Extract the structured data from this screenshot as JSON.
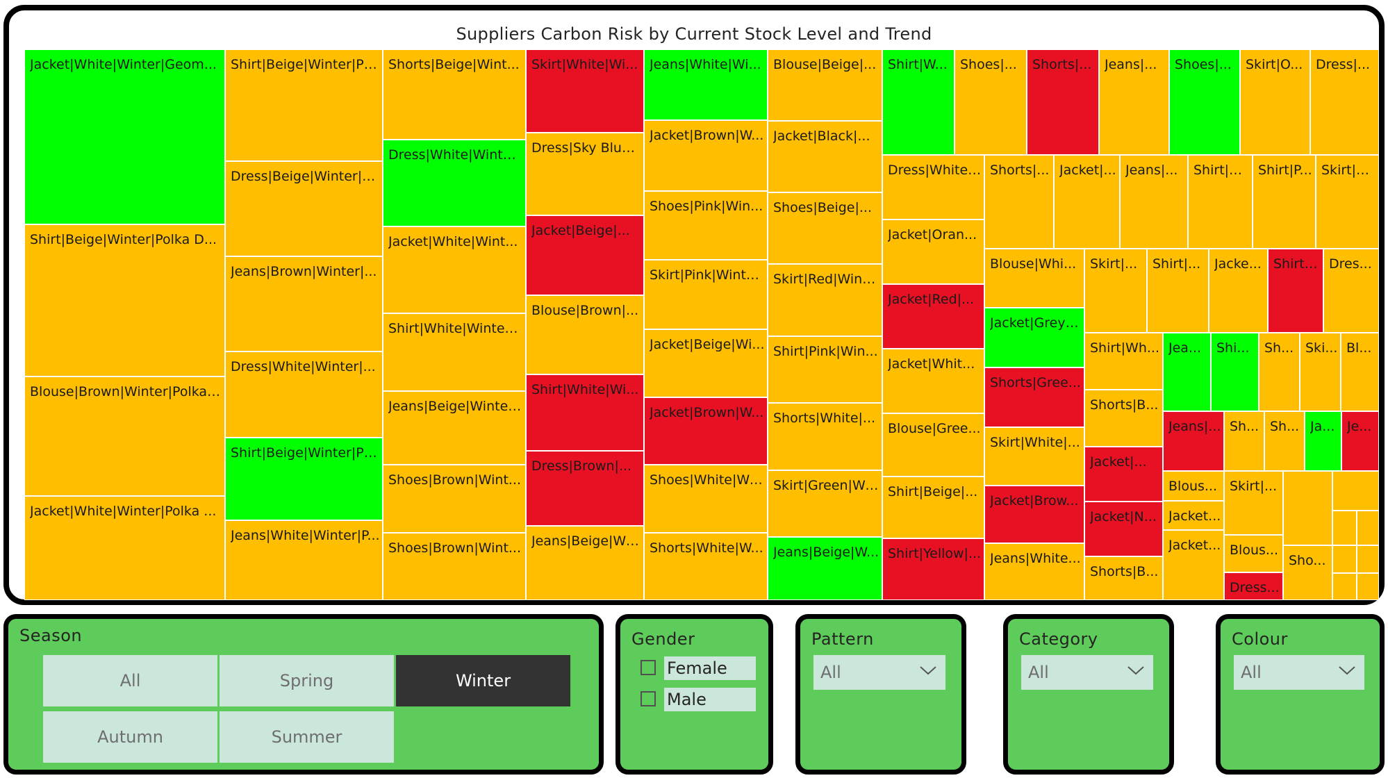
{
  "chart_data": {
    "type": "treemap",
    "title": "Suppliers Carbon Risk by Current Stock Level and Trend",
    "legend": "none",
    "colors": {
      "red": "#e81123",
      "amber": "#ffbe00",
      "green": "#00ff00"
    },
    "tiles": [
      {
        "label": "Jacket|White|Winter|Geom...",
        "risk": "green",
        "col": 0,
        "row": 0,
        "w": 1.0,
        "h": 0.316
      },
      {
        "label": "Shirt|Beige|Winter|Polka D...",
        "risk": "amber",
        "col": 0,
        "row": 1,
        "w": 1.0,
        "h": 0.277
      },
      {
        "label": "Blouse|Brown|Winter|Polka ...",
        "risk": "amber",
        "col": 0,
        "row": 2,
        "w": 1.0,
        "h": 0.218
      },
      {
        "label": "Jacket|White|Winter|Polka ...",
        "risk": "amber",
        "col": 0,
        "row": 3,
        "w": 1.0,
        "h": 0.189
      },
      {
        "label": "Shirt|Beige|Winter|Pl...",
        "risk": "amber",
        "col": 1,
        "row": 0,
        "h": 0.203
      },
      {
        "label": "Dress|Beige|Winter|P...",
        "risk": "amber",
        "col": 1,
        "row": 1,
        "h": 0.173
      },
      {
        "label": "Jeans|Brown|Winter|...",
        "risk": "amber",
        "col": 1,
        "row": 2,
        "h": 0.172
      },
      {
        "label": "Dress|White|Winter|...",
        "risk": "amber",
        "col": 1,
        "row": 3,
        "h": 0.156
      },
      {
        "label": "Shirt|Beige|Winter|Pl...",
        "risk": "green",
        "col": 1,
        "row": 4,
        "h": 0.15
      },
      {
        "label": "Jeans|White|Winter|P...",
        "risk": "amber",
        "col": 1,
        "row": 5,
        "h": 0.146
      },
      {
        "label": "Shorts|Beige|Wint...",
        "risk": "amber",
        "col": 2,
        "row": 0,
        "h": 0.164
      },
      {
        "label": "Dress|White|Winte...",
        "risk": "green",
        "col": 2,
        "row": 1,
        "h": 0.157
      },
      {
        "label": "Jacket|White|Wint...",
        "risk": "amber",
        "col": 2,
        "row": 2,
        "h": 0.157
      },
      {
        "label": "Shirt|White|Winter|...",
        "risk": "amber",
        "col": 2,
        "row": 3,
        "h": 0.141
      },
      {
        "label": "Jeans|Beige|Winter...",
        "risk": "amber",
        "col": 2,
        "row": 4,
        "h": 0.134
      },
      {
        "label": "Shoes|Brown|Wint...",
        "risk": "amber",
        "col": 2,
        "row": 5,
        "h": 0.124
      },
      {
        "label": "Shoes|Brown|Wint...",
        "risk": "amber",
        "col": 2,
        "row": 6,
        "h": 0.123
      },
      {
        "label": "Skirt|White|Wi...",
        "risk": "red",
        "col": 3,
        "row": 0,
        "h": 0.151
      },
      {
        "label": "Dress|Sky Blue...",
        "risk": "amber",
        "col": 3,
        "row": 1,
        "h": 0.15
      },
      {
        "label": "Jacket|Beige|...",
        "risk": "red",
        "col": 3,
        "row": 2,
        "h": 0.145
      },
      {
        "label": "Blouse|Brown|...",
        "risk": "amber",
        "col": 3,
        "row": 3,
        "h": 0.143
      },
      {
        "label": "Shirt|White|Wi...",
        "risk": "red",
        "col": 3,
        "row": 4,
        "h": 0.139
      },
      {
        "label": "Dress|Brown|...",
        "risk": "red",
        "col": 3,
        "row": 5,
        "h": 0.136
      },
      {
        "label": "Jeans|Beige|Wi...",
        "risk": "amber",
        "col": 3,
        "row": 6,
        "h": 0.136
      },
      {
        "label": "Jeans|White|Wi...",
        "risk": "green",
        "col": 4,
        "row": 0,
        "h": 0.129
      },
      {
        "label": "Jacket|Brown|W...",
        "risk": "amber",
        "col": 4,
        "row": 1,
        "h": 0.128
      },
      {
        "label": "Shoes|Pink|Win...",
        "risk": "amber",
        "col": 4,
        "row": 2,
        "h": 0.125
      },
      {
        "label": "Skirt|Pink|Winte...",
        "risk": "amber",
        "col": 4,
        "row": 3,
        "h": 0.126
      },
      {
        "label": "Jacket|Beige|Wi...",
        "risk": "amber",
        "col": 4,
        "row": 4,
        "h": 0.124
      },
      {
        "label": "Jacket|Brown|W...",
        "risk": "red",
        "col": 4,
        "row": 5,
        "h": 0.123
      },
      {
        "label": "Shoes|White|Wi...",
        "risk": "amber",
        "col": 4,
        "row": 6,
        "h": 0.124
      },
      {
        "label": "Shorts|White|W...",
        "risk": "amber",
        "col": 4,
        "row": 7,
        "h": 0.121
      },
      {
        "label": "Blouse|Beige|...",
        "risk": "amber",
        "col": 5,
        "row": 0,
        "h": 0.13
      },
      {
        "label": "Jacket|Black|...",
        "risk": "amber",
        "col": 5,
        "row": 1,
        "h": 0.13
      },
      {
        "label": "Shoes|Beige|...",
        "risk": "amber",
        "col": 5,
        "row": 2,
        "h": 0.13
      },
      {
        "label": "Skirt|Red|Wint...",
        "risk": "amber",
        "col": 5,
        "row": 3,
        "h": 0.131
      },
      {
        "label": "Shirt|Pink|Win...",
        "risk": "amber",
        "col": 5,
        "row": 4,
        "h": 0.121
      },
      {
        "label": "Shorts|White|...",
        "risk": "amber",
        "col": 5,
        "row": 5,
        "h": 0.122
      },
      {
        "label": "Skirt|Green|Wi...",
        "risk": "amber",
        "col": 5,
        "row": 6,
        "h": 0.121
      },
      {
        "label": "Jeans|Beige|W...",
        "risk": "green",
        "col": 5,
        "row": 7,
        "h": 0.115
      },
      {
        "label": "Shirt|W...",
        "risk": "green",
        "section": "top"
      },
      {
        "label": "Shoes|...",
        "risk": "amber",
        "section": "top"
      },
      {
        "label": "Shorts|...",
        "risk": "red",
        "section": "top"
      },
      {
        "label": "Jeans|...",
        "risk": "amber",
        "section": "top"
      },
      {
        "label": "Shoes|...",
        "risk": "green",
        "section": "top"
      },
      {
        "label": "Skirt|O...",
        "risk": "amber",
        "section": "top"
      },
      {
        "label": "Dress|...",
        "risk": "amber",
        "section": "top"
      },
      {
        "label": "Dress|White|...",
        "risk": "amber",
        "section": "left"
      },
      {
        "label": "Jacket|Oran...",
        "risk": "amber",
        "section": "left"
      },
      {
        "label": "Jacket|Red|...",
        "risk": "red",
        "section": "left"
      },
      {
        "label": "Jacket|Whit...",
        "risk": "amber",
        "section": "left"
      },
      {
        "label": "Blouse|Gree...",
        "risk": "amber",
        "section": "left"
      },
      {
        "label": "Shirt|Beige|...",
        "risk": "amber",
        "section": "left"
      },
      {
        "label": "Shirt|Yellow|...",
        "risk": "red",
        "section": "left"
      },
      {
        "label": "Shorts|...",
        "risk": "amber",
        "section": "row2"
      },
      {
        "label": "Jacket|...",
        "risk": "amber",
        "section": "row2"
      },
      {
        "label": "Jeans|...",
        "risk": "amber",
        "section": "row2"
      },
      {
        "label": "Shirt|B...",
        "risk": "amber",
        "section": "row2"
      },
      {
        "label": "Shirt|P...",
        "risk": "amber",
        "section": "row2"
      },
      {
        "label": "Skirt|B...",
        "risk": "amber",
        "section": "row2"
      },
      {
        "label": "Blouse|Whi...",
        "risk": "amber",
        "section": "mid"
      },
      {
        "label": "Jacket|Grey|...",
        "risk": "green",
        "section": "mid"
      },
      {
        "label": "Shorts|Gree...",
        "risk": "red",
        "section": "mid"
      },
      {
        "label": "Skirt|White|...",
        "risk": "amber",
        "section": "mid"
      },
      {
        "label": "Jacket|Brow...",
        "risk": "red",
        "section": "mid"
      },
      {
        "label": "Jeans|White...",
        "risk": "amber",
        "section": "mid"
      },
      {
        "label": "Skirt|...",
        "risk": "amber",
        "section": "row3"
      },
      {
        "label": "Shirt|...",
        "risk": "amber",
        "section": "row3"
      },
      {
        "label": "Jacke...",
        "risk": "amber",
        "section": "row3"
      },
      {
        "label": "Shirt|...",
        "risk": "red",
        "section": "row3"
      },
      {
        "label": "Dres...",
        "risk": "amber",
        "section": "row3"
      },
      {
        "label": "Shirt|Wh...",
        "risk": "amber",
        "section": "right"
      },
      {
        "label": "Shorts|B...",
        "risk": "amber",
        "section": "right"
      },
      {
        "label": "Jacket|...",
        "risk": "red",
        "section": "right"
      },
      {
        "label": "Jacket|N...",
        "risk": "red",
        "section": "right"
      },
      {
        "label": "Shorts|B...",
        "risk": "amber",
        "section": "right"
      },
      {
        "label": "Jea...",
        "risk": "green",
        "section": "small"
      },
      {
        "label": "Shi...",
        "risk": "green",
        "section": "small"
      },
      {
        "label": "Sh...",
        "risk": "amber",
        "section": "small"
      },
      {
        "label": "Ski...",
        "risk": "amber",
        "section": "small"
      },
      {
        "label": "Bl...",
        "risk": "amber",
        "section": "small"
      },
      {
        "label": "Jeans|...",
        "risk": "red",
        "section": "small"
      },
      {
        "label": "Sh...",
        "risk": "amber",
        "section": "small"
      },
      {
        "label": "Sh...",
        "risk": "amber",
        "section": "small"
      },
      {
        "label": "Ja...",
        "risk": "green",
        "section": "small"
      },
      {
        "label": "Je...",
        "risk": "red",
        "section": "small"
      },
      {
        "label": "Blous...",
        "risk": "amber",
        "section": "small"
      },
      {
        "label": "Jacket...",
        "risk": "amber",
        "section": "small"
      },
      {
        "label": "Jacket...",
        "risk": "amber",
        "section": "small"
      },
      {
        "label": "Skirt|...",
        "risk": "amber",
        "section": "small"
      },
      {
        "label": "Blous...",
        "risk": "amber",
        "section": "small"
      },
      {
        "label": "Dress...",
        "risk": "red",
        "section": "small"
      },
      {
        "label": "Sho...",
        "risk": "amber",
        "section": "small"
      }
    ]
  },
  "filters": {
    "season": {
      "title": "Season",
      "options": [
        "All",
        "Spring",
        "Winter",
        "Autumn",
        "Summer"
      ],
      "selected": "Winter"
    },
    "gender": {
      "title": "Gender",
      "options": [
        "Female",
        "Male"
      ]
    },
    "pattern": {
      "title": "Pattern",
      "value": "All"
    },
    "category": {
      "title": "Category",
      "value": "All"
    },
    "colour": {
      "title": "Colour",
      "value": "All"
    }
  }
}
